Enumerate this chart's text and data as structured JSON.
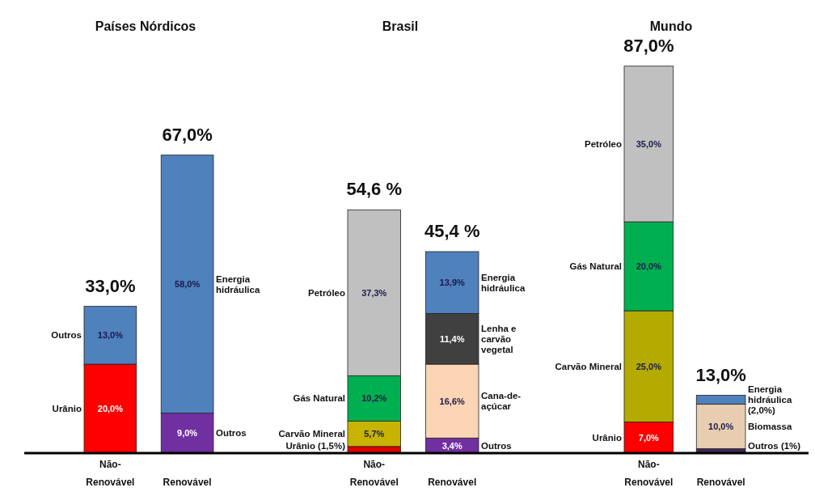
{
  "chart_data": [
    {
      "type": "bar",
      "title": "Países Nórdicos",
      "categories": [
        "Não-Renovável",
        "Renovável"
      ],
      "stacked": true,
      "totals": [
        "33,0%",
        "67,0%"
      ],
      "series": [
        {
          "name": "Urânio",
          "color": "#ff0000",
          "values": [
            20.0,
            null
          ],
          "value_labels": [
            "20,0%",
            null
          ]
        },
        {
          "name": "Outros",
          "color": "#4f81bd",
          "values": [
            13.0,
            null
          ],
          "value_labels": [
            "13,0%",
            null
          ]
        },
        {
          "name": "Outros",
          "color": "#7030a0",
          "values": [
            null,
            9.0
          ],
          "value_labels": [
            null,
            "9,0%"
          ]
        },
        {
          "name": "Energia hidráulica",
          "color": "#4f81bd",
          "values": [
            null,
            58.0
          ],
          "value_labels": [
            null,
            "58,0%"
          ]
        }
      ]
    },
    {
      "type": "bar",
      "title": "Brasil",
      "categories": [
        "Não-Renovável",
        "Renovável"
      ],
      "stacked": true,
      "totals": [
        "54,6 %",
        "45,4 %"
      ],
      "series": [
        {
          "name": "Urânio (1,5%)",
          "color": "#e00000",
          "values": [
            1.5,
            null
          ],
          "value_labels": [
            null,
            null
          ]
        },
        {
          "name": "Carvão Mineral",
          "color": "#c8b400",
          "values": [
            5.7,
            null
          ],
          "value_labels": [
            "5,7%",
            null
          ]
        },
        {
          "name": "Gás Natural",
          "color": "#00b050",
          "values": [
            10.2,
            null
          ],
          "value_labels": [
            "10,2%",
            null
          ]
        },
        {
          "name": "Petróleo",
          "color": "#c0c0c0",
          "values": [
            37.3,
            null
          ],
          "value_labels": [
            "37,3%",
            null
          ]
        },
        {
          "name": "Outros",
          "color": "#7030a0",
          "values": [
            null,
            3.4
          ],
          "value_labels": [
            null,
            "3,4%"
          ]
        },
        {
          "name": "Cana-de-açúcar",
          "color": "#fcd5b5",
          "values": [
            null,
            16.6
          ],
          "value_labels": [
            null,
            "16,6%"
          ]
        },
        {
          "name": "Lenha e carvão vegetal",
          "color": "#404040",
          "values": [
            null,
            11.4
          ],
          "value_labels": [
            null,
            "11,4%"
          ]
        },
        {
          "name": "Energia hidráulica",
          "color": "#4f81bd",
          "values": [
            null,
            13.9
          ],
          "value_labels": [
            null,
            "13,9%"
          ]
        }
      ]
    },
    {
      "type": "bar",
      "title": "Mundo",
      "categories": [
        "Não-Renovável",
        "Renovável"
      ],
      "stacked": true,
      "totals": [
        "87,0%",
        "13,0%"
      ],
      "series": [
        {
          "name": "Urânio",
          "color": "#ff0000",
          "values": [
            7.0,
            null
          ],
          "value_labels": [
            "7,0%",
            null
          ]
        },
        {
          "name": "Carvão Mineral",
          "color": "#b4aa00",
          "values": [
            25.0,
            null
          ],
          "value_labels": [
            "25,0%",
            null
          ]
        },
        {
          "name": "Gás Natural",
          "color": "#00b050",
          "values": [
            20.0,
            null
          ],
          "value_labels": [
            "20,0%",
            null
          ]
        },
        {
          "name": "Petróleo",
          "color": "#c0c0c0",
          "values": [
            35.0,
            null
          ],
          "value_labels": [
            "35,0%",
            null
          ]
        },
        {
          "name": "Outros (1%)",
          "color": "#3c2a5a",
          "values": [
            null,
            1.0
          ],
          "value_labels": [
            null,
            null
          ]
        },
        {
          "name": "Biomassa",
          "color": "#e8cdb0",
          "values": [
            null,
            10.0
          ],
          "value_labels": [
            null,
            "10,0%"
          ]
        },
        {
          "name": "Energia hidráulica (2,0%)",
          "color": "#4f81bd",
          "values": [
            null,
            2.0
          ],
          "value_labels": [
            null,
            null
          ]
        }
      ]
    }
  ]
}
